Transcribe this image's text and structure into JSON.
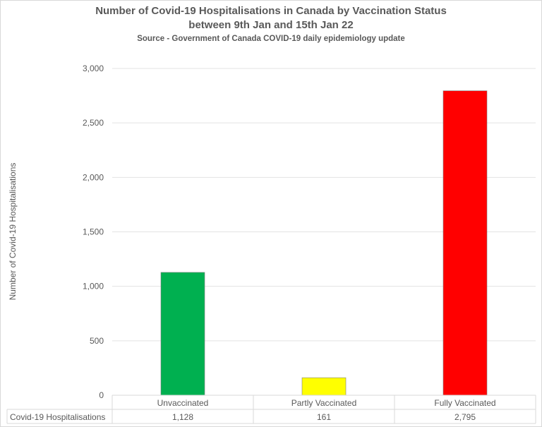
{
  "chart_data": {
    "type": "bar",
    "title": "Number of Covid-19 Hospitalisations in Canada by Vaccination Status",
    "title_line2": "between 9th Jan and 15th Jan 22",
    "subtitle": "Source - Government of Canada COVID-19 daily epidemiology update",
    "ylabel": "Number of Covid-19 Hospitalisations",
    "categories": [
      "Unvaccinated",
      "Partly Vaccinated",
      "Fully Vaccinated"
    ],
    "series": [
      {
        "name": "Covid-19 Hospitalisations",
        "values": [
          1128,
          161,
          2795
        ],
        "display": [
          "1,128",
          "161",
          "2,795"
        ],
        "colors": [
          "#00b050",
          "#ffff00",
          "#ff0000"
        ]
      }
    ],
    "yticks": [
      0,
      500,
      1000,
      1500,
      2000,
      2500,
      3000
    ],
    "ytick_labels": [
      "0",
      "500",
      "1,000",
      "1,500",
      "2,000",
      "2,500",
      "3,000"
    ],
    "ylim": [
      0,
      3000
    ],
    "grid": true,
    "legend": "data table below chart"
  }
}
